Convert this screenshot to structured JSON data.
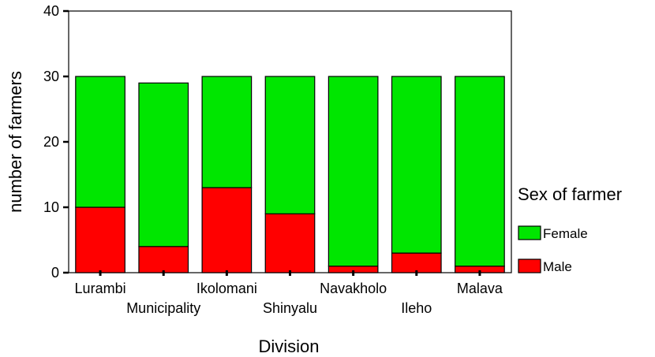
{
  "chart_data": {
    "type": "bar",
    "stacked": true,
    "categories": [
      "Lurambi",
      "Municipality",
      "Ikolomani",
      "Shinyalu",
      "Navakholo",
      "Ileho",
      "Malava"
    ],
    "series": [
      {
        "name": "Male",
        "values": [
          10,
          4,
          13,
          9,
          1,
          3,
          1
        ],
        "color": "#ff0000"
      },
      {
        "name": "Female",
        "values": [
          20,
          25,
          17,
          21,
          29,
          27,
          29
        ],
        "color": "#00e600"
      }
    ],
    "xlabel": "Division",
    "ylabel": "number of farmers",
    "ylim": [
      0,
      40
    ],
    "yticks": [
      0,
      10,
      20,
      30,
      40
    ],
    "grid": false,
    "legend": {
      "title": "Sex of farmer",
      "position": "right",
      "entries": [
        "Female",
        "Male"
      ]
    }
  }
}
